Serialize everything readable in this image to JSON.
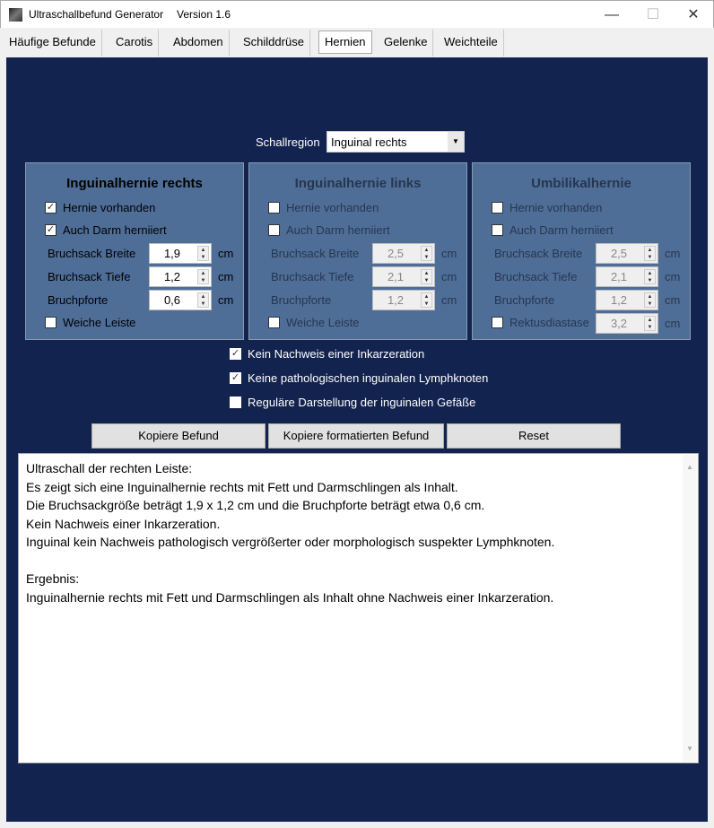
{
  "window": {
    "title": "Ultraschallbefund Generator",
    "version": "Version 1.6",
    "minimize": "—",
    "maximize": "☐",
    "close": "✕"
  },
  "tabs": [
    "Häufige Befunde",
    "Carotis",
    "Abdomen",
    "Schilddrüse",
    "Hernien",
    "Gelenke",
    "Weichteile"
  ],
  "active_tab": "Hernien",
  "region": {
    "label": "Schallregion",
    "value": "Inguinal rechts"
  },
  "panels": [
    {
      "title": "Inguinalhernie rechts",
      "enabled": true,
      "checks": [
        {
          "label": "Hernie vorhanden",
          "checked": true
        },
        {
          "label": "Auch Darm herniiert",
          "checked": true
        }
      ],
      "fields": [
        {
          "label": "Bruchsack Breite",
          "value": "1,9",
          "unit": "cm"
        },
        {
          "label": "Bruchsack Tiefe",
          "value": "1,2",
          "unit": "cm"
        },
        {
          "label": "Bruchpforte",
          "value": "0,6",
          "unit": "cm"
        }
      ],
      "last": {
        "label": "Weiche Leiste",
        "checked": false
      }
    },
    {
      "title": "Inguinalhernie links",
      "enabled": false,
      "checks": [
        {
          "label": "Hernie vorhanden",
          "checked": false
        },
        {
          "label": "Auch Darm herniiert",
          "checked": false
        }
      ],
      "fields": [
        {
          "label": "Bruchsack Breite",
          "value": "2,5",
          "unit": "cm"
        },
        {
          "label": "Bruchsack Tiefe",
          "value": "2,1",
          "unit": "cm"
        },
        {
          "label": "Bruchpforte",
          "value": "1,2",
          "unit": "cm"
        }
      ],
      "last": {
        "label": "Weiche Leiste",
        "checked": false
      }
    },
    {
      "title": "Umbilikalhernie",
      "enabled": false,
      "checks": [
        {
          "label": "Hernie vorhanden",
          "checked": false
        },
        {
          "label": "Auch Darm herniiert",
          "checked": false
        }
      ],
      "fields": [
        {
          "label": "Bruchsack Breite",
          "value": "2,5",
          "unit": "cm"
        },
        {
          "label": "Bruchsack Tiefe",
          "value": "2,1",
          "unit": "cm"
        },
        {
          "label": "Bruchpforte",
          "value": "1,2",
          "unit": "cm"
        }
      ],
      "last": {
        "label": "Rektusdiastase",
        "checked": false,
        "value": "3,2",
        "unit": "cm"
      }
    }
  ],
  "options": [
    {
      "label": "Kein Nachweis einer Inkarzeration",
      "checked": true
    },
    {
      "label": "Keine pathologischen inguinalen Lymphknoten",
      "checked": true
    },
    {
      "label": "Reguläre Darstellung der inguinalen Gefäße",
      "checked": false
    }
  ],
  "buttons": {
    "copy": "Kopiere Befund",
    "copy_formatted": "Kopiere formatierten Befund",
    "reset": "Reset"
  },
  "output": "Ultraschall der rechten Leiste:\nEs zeigt sich eine Inguinalhernie rechts mit Fett und Darmschlingen als Inhalt.\nDie Bruchsackgröße beträgt 1,9 x 1,2 cm und die Bruchpforte beträgt etwa 0,6 cm.\nKein Nachweis einer Inkarzeration.\nInguinal kein Nachweis pathologisch vergrößerter oder morphologisch suspekter Lymphknoten.\n\nErgebnis:\nInguinalhernie rechts mit Fett und Darmschlingen als Inhalt ohne Nachweis einer Inkarzeration.",
  "colors": {
    "background": "#13234f",
    "panel": "#4e6e98"
  }
}
